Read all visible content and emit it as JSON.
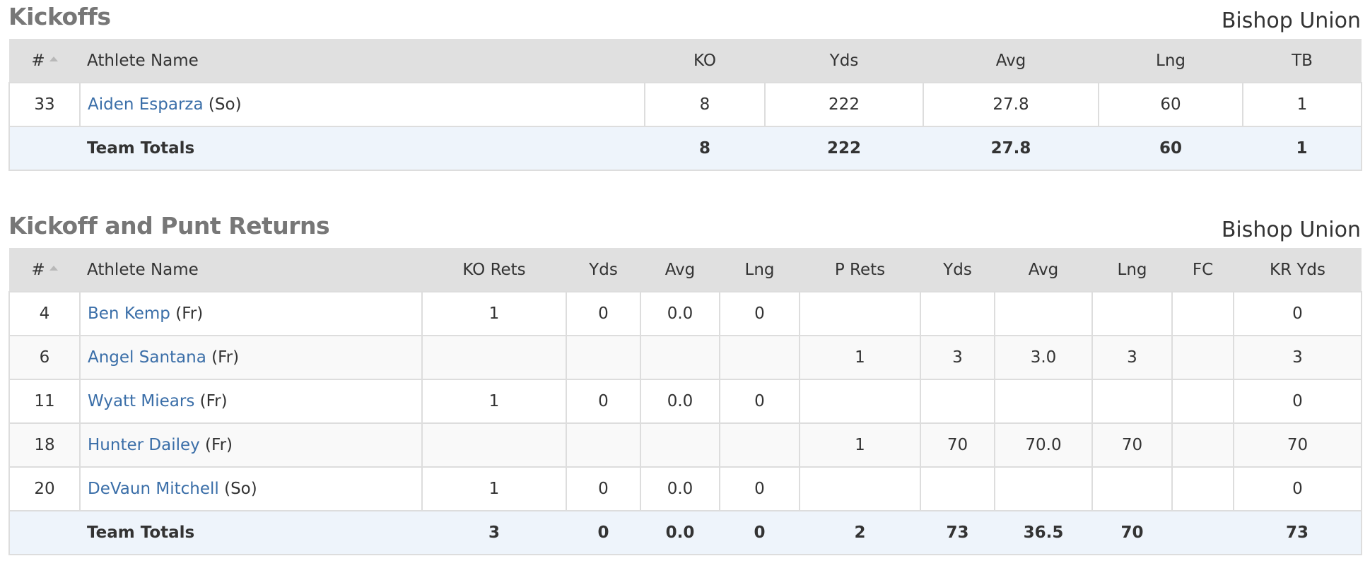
{
  "kickoffs": {
    "title": "Kickoffs",
    "team": "Bishop Union",
    "headers": {
      "num": "#",
      "name": "Athlete Name",
      "ko": "KO",
      "yds": "Yds",
      "avg": "Avg",
      "lng": "Lng",
      "tb": "TB"
    },
    "rows": [
      {
        "num": "33",
        "name": "Aiden Esparza",
        "class": "(So)",
        "ko": "8",
        "yds": "222",
        "avg": "27.8",
        "lng": "60",
        "tb": "1"
      }
    ],
    "totals": {
      "label": "Team Totals",
      "ko": "8",
      "yds": "222",
      "avg": "27.8",
      "lng": "60",
      "tb": "1"
    }
  },
  "returns": {
    "title": "Kickoff and Punt Returns",
    "team": "Bishop Union",
    "headers": {
      "num": "#",
      "name": "Athlete Name",
      "ko_rets": "KO Rets",
      "ko_yds": "Yds",
      "ko_avg": "Avg",
      "ko_lng": "Lng",
      "p_rets": "P Rets",
      "p_yds": "Yds",
      "p_avg": "Avg",
      "p_lng": "Lng",
      "fc": "FC",
      "kr_yds": "KR Yds"
    },
    "rows": [
      {
        "num": "4",
        "name": "Ben Kemp",
        "class": "(Fr)",
        "ko_rets": "1",
        "ko_yds": "0",
        "ko_avg": "0.0",
        "ko_lng": "0",
        "p_rets": "",
        "p_yds": "",
        "p_avg": "",
        "p_lng": "",
        "fc": "",
        "kr_yds": "0"
      },
      {
        "num": "6",
        "name": "Angel Santana",
        "class": "(Fr)",
        "ko_rets": "",
        "ko_yds": "",
        "ko_avg": "",
        "ko_lng": "",
        "p_rets": "1",
        "p_yds": "3",
        "p_avg": "3.0",
        "p_lng": "3",
        "fc": "",
        "kr_yds": "3"
      },
      {
        "num": "11",
        "name": "Wyatt Miears",
        "class": "(Fr)",
        "ko_rets": "1",
        "ko_yds": "0",
        "ko_avg": "0.0",
        "ko_lng": "0",
        "p_rets": "",
        "p_yds": "",
        "p_avg": "",
        "p_lng": "",
        "fc": "",
        "kr_yds": "0"
      },
      {
        "num": "18",
        "name": "Hunter Dailey",
        "class": "(Fr)",
        "ko_rets": "",
        "ko_yds": "",
        "ko_avg": "",
        "ko_lng": "",
        "p_rets": "1",
        "p_yds": "70",
        "p_avg": "70.0",
        "p_lng": "70",
        "fc": "",
        "kr_yds": "70"
      },
      {
        "num": "20",
        "name": "DeVaun Mitchell",
        "class": "(So)",
        "ko_rets": "1",
        "ko_yds": "0",
        "ko_avg": "0.0",
        "ko_lng": "0",
        "p_rets": "",
        "p_yds": "",
        "p_avg": "",
        "p_lng": "",
        "fc": "",
        "kr_yds": "0"
      }
    ],
    "totals": {
      "label": "Team Totals",
      "ko_rets": "3",
      "ko_yds": "0",
      "ko_avg": "0.0",
      "ko_lng": "0",
      "p_rets": "2",
      "p_yds": "73",
      "p_avg": "36.5",
      "p_lng": "70",
      "fc": "",
      "kr_yds": "73"
    }
  },
  "colors": {
    "header_bg": "#e0e0e0",
    "totals_bg": "#eef4fb",
    "link": "#3a6ea8",
    "title": "#777777"
  },
  "icons": {
    "sort": "sort-ascending-caret-icon"
  }
}
